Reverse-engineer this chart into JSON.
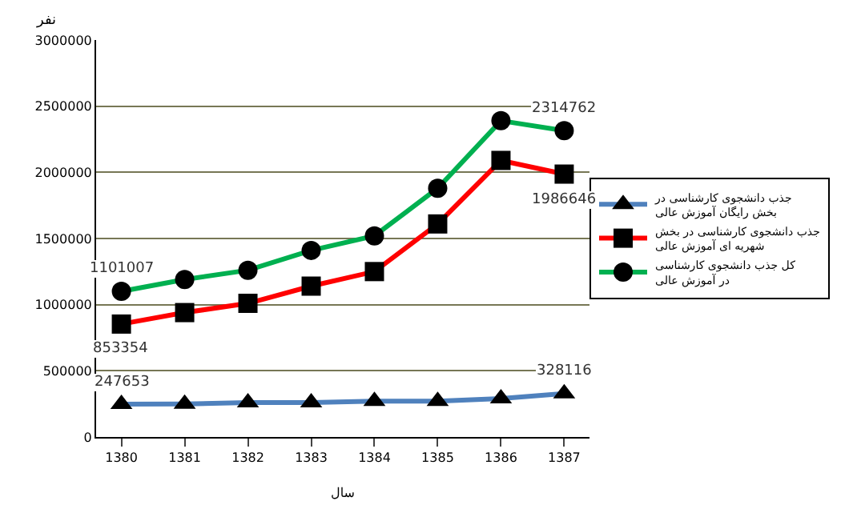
{
  "chart_data": {
    "type": "line",
    "ylabel": "نفر",
    "xlabel": "سال",
    "categories": [
      "1380",
      "1381",
      "1382",
      "1383",
      "1384",
      "1385",
      "1386",
      "1387"
    ],
    "series": [
      {
        "name": "جذب دانشجوی کارشناسی در بخش رایگان آموزش عالی",
        "color": "#4f81bd",
        "marker": "triangle",
        "values": [
          247653,
          250000,
          260000,
          260000,
          270000,
          270000,
          290000,
          328116
        ],
        "value_labels": [
          "247653",
          null,
          null,
          null,
          null,
          null,
          null,
          "328116"
        ]
      },
      {
        "name": "جذب دانشجوی کارشناسی در بخش شهریه ای آموزش عالی",
        "color": "#ff0000",
        "marker": "square",
        "values": [
          853354,
          940000,
          1010000,
          1140000,
          1250000,
          1610000,
          2090000,
          1986646
        ],
        "value_labels": [
          "853354",
          null,
          null,
          null,
          null,
          null,
          null,
          "1986646"
        ]
      },
      {
        "name": "کل جذب دانشجوی کارشناسی در آموزش عالی",
        "color": "#00b050",
        "marker": "circle",
        "values": [
          1101007,
          1190000,
          1260000,
          1410000,
          1520000,
          1880000,
          2390000,
          2314762
        ],
        "value_labels": [
          "1101007",
          null,
          null,
          null,
          null,
          null,
          null,
          "2314762"
        ]
      }
    ],
    "ylim": [
      0,
      3000000
    ],
    "yticks": [
      0,
      500000,
      1000000,
      1500000,
      2000000,
      2500000,
      3000000
    ],
    "grid": "y",
    "legend": "right"
  }
}
